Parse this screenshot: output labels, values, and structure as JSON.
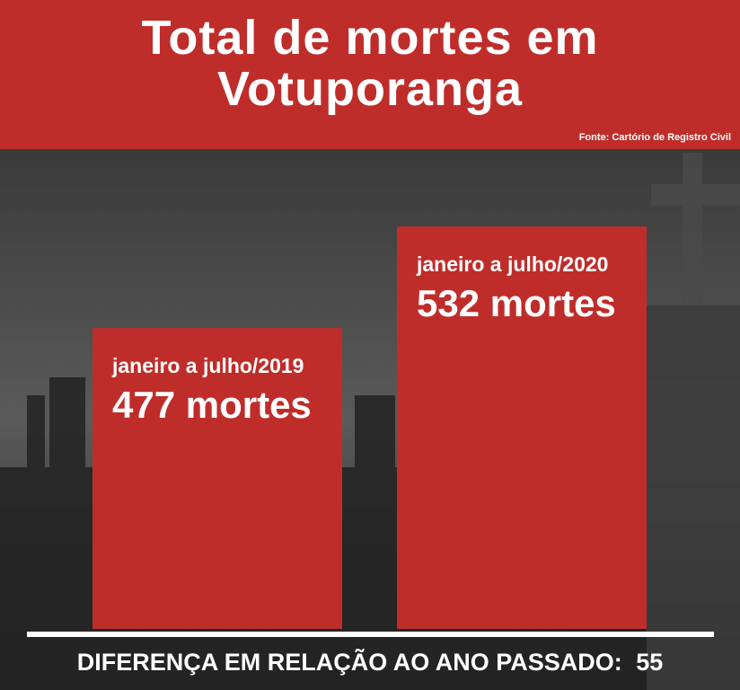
{
  "chart_data": {
    "type": "bar",
    "title": "Total de mortes em Votuporanga",
    "source": "Fonte: Cartório de Registro Civil",
    "categories": [
      "janeiro a julho/2019",
      "janeiro a julho/2020"
    ],
    "values": [
      477,
      532
    ],
    "value_labels": [
      "477 mortes",
      "532 mortes"
    ],
    "color": "#bf2d2a",
    "ylim": [
      314,
      572
    ],
    "difference_label": "DIFERENÇA EM RELAÇÃO AO ANO PASSADO:",
    "difference": 55
  }
}
